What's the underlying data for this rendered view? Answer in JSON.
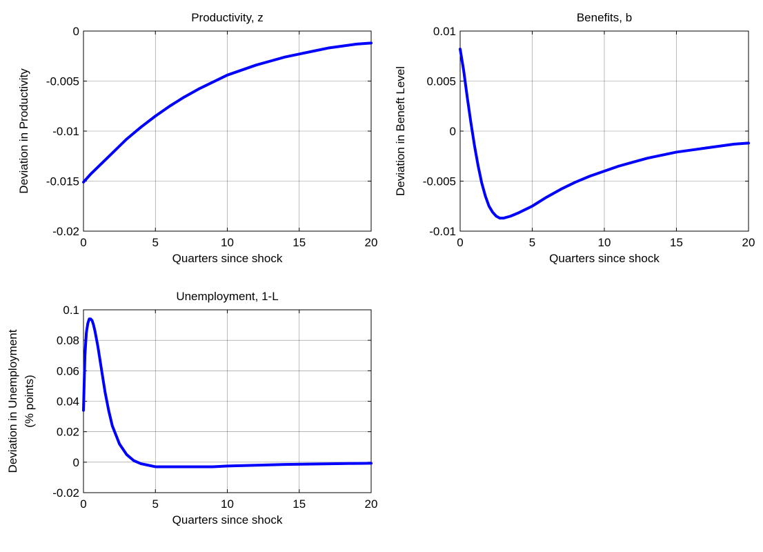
{
  "chart_data": [
    {
      "type": "line",
      "title": "Productivity, z",
      "xlabel": "Quarters since shock",
      "ylabel": [
        "Deviation in Productivity"
      ],
      "xlim": [
        0,
        20
      ],
      "ylim": [
        -0.02,
        0
      ],
      "xticks": [
        0,
        5,
        10,
        15,
        20
      ],
      "xtick_labels": [
        "0",
        "5",
        "10",
        "15",
        "20"
      ],
      "yticks": [
        -0.02,
        -0.015,
        -0.01,
        -0.005,
        0
      ],
      "ytick_labels": [
        "-0.02",
        "-0.015",
        "-0.01",
        "-0.005",
        "0"
      ],
      "grid": true,
      "line_color": "#0000FF",
      "series": [
        {
          "x": [
            0,
            0.5,
            1,
            1.5,
            2,
            2.5,
            3,
            3.5,
            4,
            5,
            6,
            7,
            8,
            9,
            10,
            11,
            12,
            13,
            14,
            15,
            16,
            17,
            18,
            19,
            20
          ],
          "values": [
            -0.0151,
            -0.0143,
            -0.0136,
            -0.0129,
            -0.0122,
            -0.0115,
            -0.0108,
            -0.0102,
            -0.0096,
            -0.0085,
            -0.0075,
            -0.0066,
            -0.0058,
            -0.0051,
            -0.0044,
            -0.0039,
            -0.0034,
            -0.003,
            -0.0026,
            -0.0023,
            -0.002,
            -0.0017,
            -0.0015,
            -0.0013,
            -0.0012
          ]
        }
      ]
    },
    {
      "type": "line",
      "title": "Benefits, b",
      "xlabel": "Quarters since shock",
      "ylabel": [
        "Deviation in Beneft Level"
      ],
      "xlim": [
        0,
        20
      ],
      "ylim": [
        -0.01,
        0.01
      ],
      "xticks": [
        0,
        5,
        10,
        15,
        20
      ],
      "xtick_labels": [
        "0",
        "5",
        "10",
        "15",
        "20"
      ],
      "yticks": [
        -0.01,
        -0.005,
        0,
        0.005,
        0.01
      ],
      "ytick_labels": [
        "-0.01",
        "-0.005",
        "0",
        "0.005",
        "0.01"
      ],
      "grid": true,
      "line_color": "#0000FF",
      "series": [
        {
          "x": [
            0,
            0.25,
            0.5,
            0.75,
            1,
            1.25,
            1.5,
            1.75,
            2,
            2.25,
            2.5,
            2.75,
            3,
            3.5,
            4,
            5,
            6,
            7,
            8,
            9,
            10,
            11,
            12,
            13,
            14,
            15,
            16,
            17,
            18,
            19,
            20
          ],
          "values": [
            0.0082,
            0.006,
            0.0033,
            0.0008,
            -0.0015,
            -0.0035,
            -0.0052,
            -0.0065,
            -0.0075,
            -0.0081,
            -0.0085,
            -0.0087,
            -0.0087,
            -0.0085,
            -0.0082,
            -0.0075,
            -0.0066,
            -0.0058,
            -0.0051,
            -0.0045,
            -0.004,
            -0.0035,
            -0.0031,
            -0.0027,
            -0.0024,
            -0.0021,
            -0.0019,
            -0.0017,
            -0.0015,
            -0.0013,
            -0.0012
          ]
        }
      ]
    },
    {
      "type": "line",
      "title": "Unemployment, 1-L",
      "xlabel": "Quarters since shock",
      "ylabel": [
        "Deviation in Unemployment",
        "(% points)"
      ],
      "xlim": [
        0,
        20
      ],
      "ylim": [
        -0.02,
        0.1
      ],
      "xticks": [
        0,
        5,
        10,
        15,
        20
      ],
      "xtick_labels": [
        "0",
        "5",
        "10",
        "15",
        "20"
      ],
      "yticks": [
        -0.02,
        0,
        0.02,
        0.04,
        0.06,
        0.08,
        0.1
      ],
      "ytick_labels": [
        "-0.02",
        "0",
        "0.02",
        "0.04",
        "0.06",
        "0.08",
        "0.1"
      ],
      "grid": true,
      "line_color": "#0000FF",
      "series": [
        {
          "x": [
            0,
            0.1,
            0.2,
            0.3,
            0.4,
            0.5,
            0.6,
            0.7,
            0.8,
            1,
            1.2,
            1.5,
            1.75,
            2,
            2.5,
            3,
            3.5,
            4,
            4.5,
            5,
            5.5,
            6,
            7,
            8,
            9,
            10,
            12,
            14,
            16,
            18,
            20
          ],
          "values": [
            0.034,
            0.07,
            0.085,
            0.091,
            0.094,
            0.094,
            0.093,
            0.09,
            0.086,
            0.076,
            0.064,
            0.046,
            0.034,
            0.024,
            0.012,
            0.005,
            0.001,
            -0.001,
            -0.002,
            -0.003,
            -0.003,
            -0.003,
            -0.003,
            -0.003,
            -0.003,
            -0.0025,
            -0.002,
            -0.0015,
            -0.0012,
            -0.0009,
            -0.0007
          ]
        }
      ]
    }
  ]
}
